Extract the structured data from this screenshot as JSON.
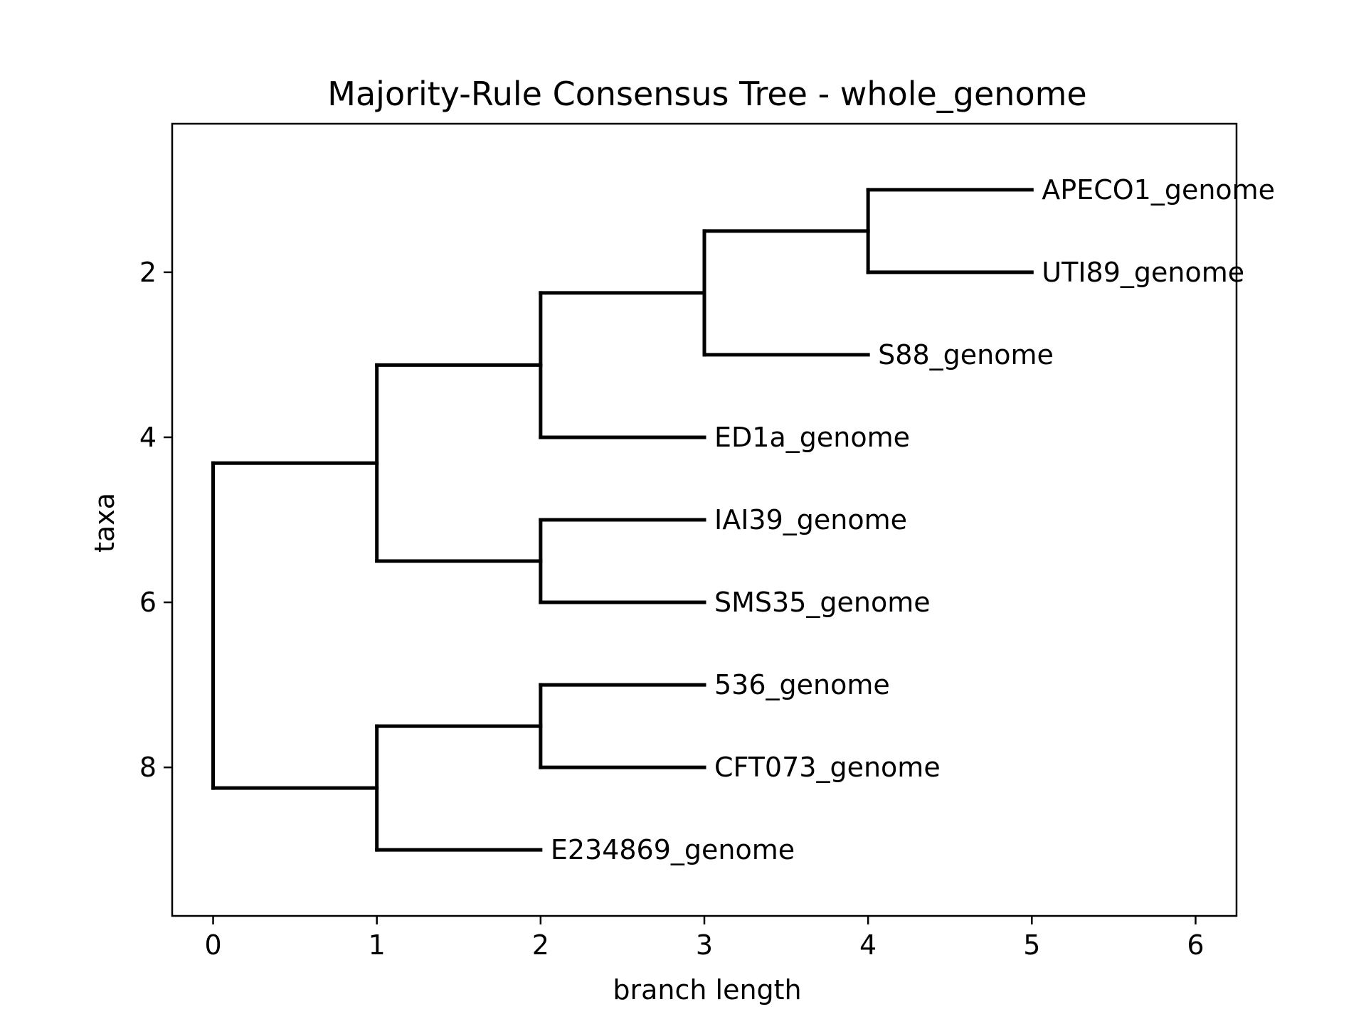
{
  "chart_data": {
    "type": "dendrogram",
    "title": "Majority-Rule Consensus Tree - whole_genome",
    "xlabel": "branch length",
    "ylabel": "taxa",
    "xlim": [
      -0.25,
      6.25
    ],
    "ylim": [
      9.8,
      0.2
    ],
    "xticks": [
      0,
      1,
      2,
      3,
      4,
      5,
      6
    ],
    "yticks": [
      2,
      4,
      6,
      8
    ],
    "grid": false,
    "legend": "none",
    "leaves": [
      {
        "name": "APECO1_genome",
        "x": 5,
        "y": 1
      },
      {
        "name": "UTI89_genome",
        "x": 5,
        "y": 2
      },
      {
        "name": "S88_genome",
        "x": 4,
        "y": 3
      },
      {
        "name": "ED1a_genome",
        "x": 3,
        "y": 4
      },
      {
        "name": "IAI39_genome",
        "x": 3,
        "y": 5
      },
      {
        "name": "SMS35_genome",
        "x": 3,
        "y": 6
      },
      {
        "name": "536_genome",
        "x": 3,
        "y": 7
      },
      {
        "name": "CFT073_genome",
        "x": 3,
        "y": 8
      },
      {
        "name": "E234869_genome",
        "x": 2,
        "y": 9
      }
    ],
    "internal_nodes": [
      {
        "id": "n_apeco_uti",
        "x": 4,
        "y": 1.5,
        "children": [
          "APECO1_genome",
          "UTI89_genome"
        ]
      },
      {
        "id": "n_s88",
        "x": 3,
        "y": 2.25,
        "children": [
          "n_apeco_uti",
          "S88_genome"
        ]
      },
      {
        "id": "n_ed1a",
        "x": 2,
        "y": 3.125,
        "children": [
          "n_s88",
          "ED1a_genome"
        ]
      },
      {
        "id": "n_iai_sms",
        "x": 2,
        "y": 5.5,
        "children": [
          "IAI39_genome",
          "SMS35_genome"
        ]
      },
      {
        "id": "n_clade_a",
        "x": 1,
        "y": 4.3125,
        "children": [
          "n_ed1a",
          "n_iai_sms"
        ]
      },
      {
        "id": "n_536_cft",
        "x": 2,
        "y": 7.5,
        "children": [
          "536_genome",
          "CFT073_genome"
        ]
      },
      {
        "id": "n_clade_b",
        "x": 1,
        "y": 8.25,
        "children": [
          "n_536_cft",
          "E234869_genome"
        ]
      },
      {
        "id": "root",
        "x": 0,
        "y": 6.28125,
        "children": [
          "n_clade_a",
          "n_clade_b"
        ]
      }
    ]
  }
}
